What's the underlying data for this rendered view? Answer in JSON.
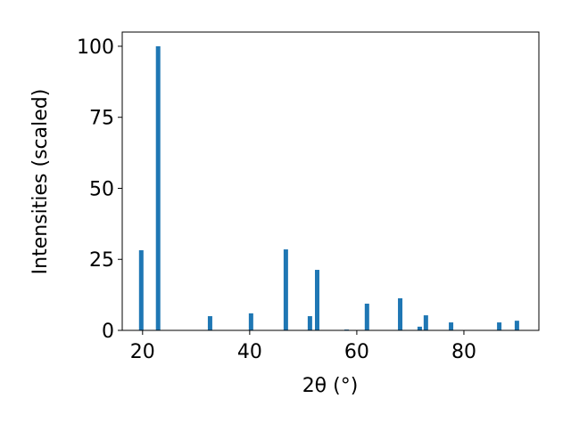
{
  "chart_data": {
    "type": "bar",
    "x_label": "2θ (°)",
    "y_label": "Intensities (scaled)",
    "x": [
      19.75,
      22.9,
      32.6,
      40.25,
      46.75,
      51.25,
      52.6,
      58.1,
      61.9,
      68.1,
      71.75,
      72.9,
      77.6,
      86.6,
      89.9
    ],
    "values": [
      28.2,
      100,
      5,
      6,
      28.5,
      5,
      21.3,
      0.3,
      9.4,
      11.3,
      1.3,
      5.3,
      2.8,
      2.8,
      3.4
    ],
    "color": "#1f77b4",
    "xlim": [
      16.2,
      94
    ],
    "xticks": [
      20,
      40,
      60,
      80
    ],
    "ylim": [
      0,
      105
    ],
    "yticks": [
      0,
      25,
      50,
      75,
      100
    ]
  }
}
